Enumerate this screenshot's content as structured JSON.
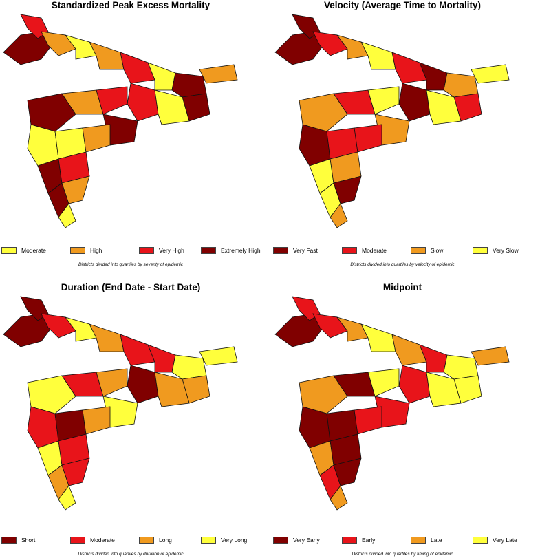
{
  "colors": {
    "extreme": "#800000",
    "red": "#e8141a",
    "orange": "#f09a1f",
    "yellow": "#ffff3c",
    "outline": "#111111"
  },
  "panels": [
    {
      "title": "Standardized Peak Excess Mortality",
      "note": "Districts divided into quartiles by severity of epidemic",
      "legend": [
        {
          "label": "Moderate",
          "color": "#ffff3c"
        },
        {
          "label": "High",
          "color": "#f09a1f"
        },
        {
          "label": "Very High",
          "color": "#e8141a"
        },
        {
          "label": "Extremely High",
          "color": "#800000"
        }
      ]
    },
    {
      "title": "Velocity (Average Time to Mortality)",
      "note": "Districts divided into quartiles by velocity of epidemic",
      "legend": [
        {
          "label": "Very Fast",
          "color": "#800000"
        },
        {
          "label": "Moderate",
          "color": "#e8141a"
        },
        {
          "label": "Slow",
          "color": "#f09a1f"
        },
        {
          "label": "Very Slow",
          "color": "#ffff3c"
        }
      ]
    },
    {
      "title": "Duration (End Date - Start Date)",
      "note": "Districts divided into quartiles by duration of epidemic",
      "legend": [
        {
          "label": "Short",
          "color": "#800000"
        },
        {
          "label": "Moderate",
          "color": "#e8141a"
        },
        {
          "label": "Long",
          "color": "#f09a1f"
        },
        {
          "label": "Very Long",
          "color": "#ffff3c"
        }
      ]
    },
    {
      "title": "Midpoint",
      "note": "Districts divided into quartiles by timing of epidemic",
      "legend": [
        {
          "label": "Very Early",
          "color": "#800000"
        },
        {
          "label": "Early",
          "color": "#e8141a"
        },
        {
          "label": "Late",
          "color": "#f09a1f"
        },
        {
          "label": "Very Late",
          "color": "#ffff3c"
        }
      ]
    }
  ]
}
